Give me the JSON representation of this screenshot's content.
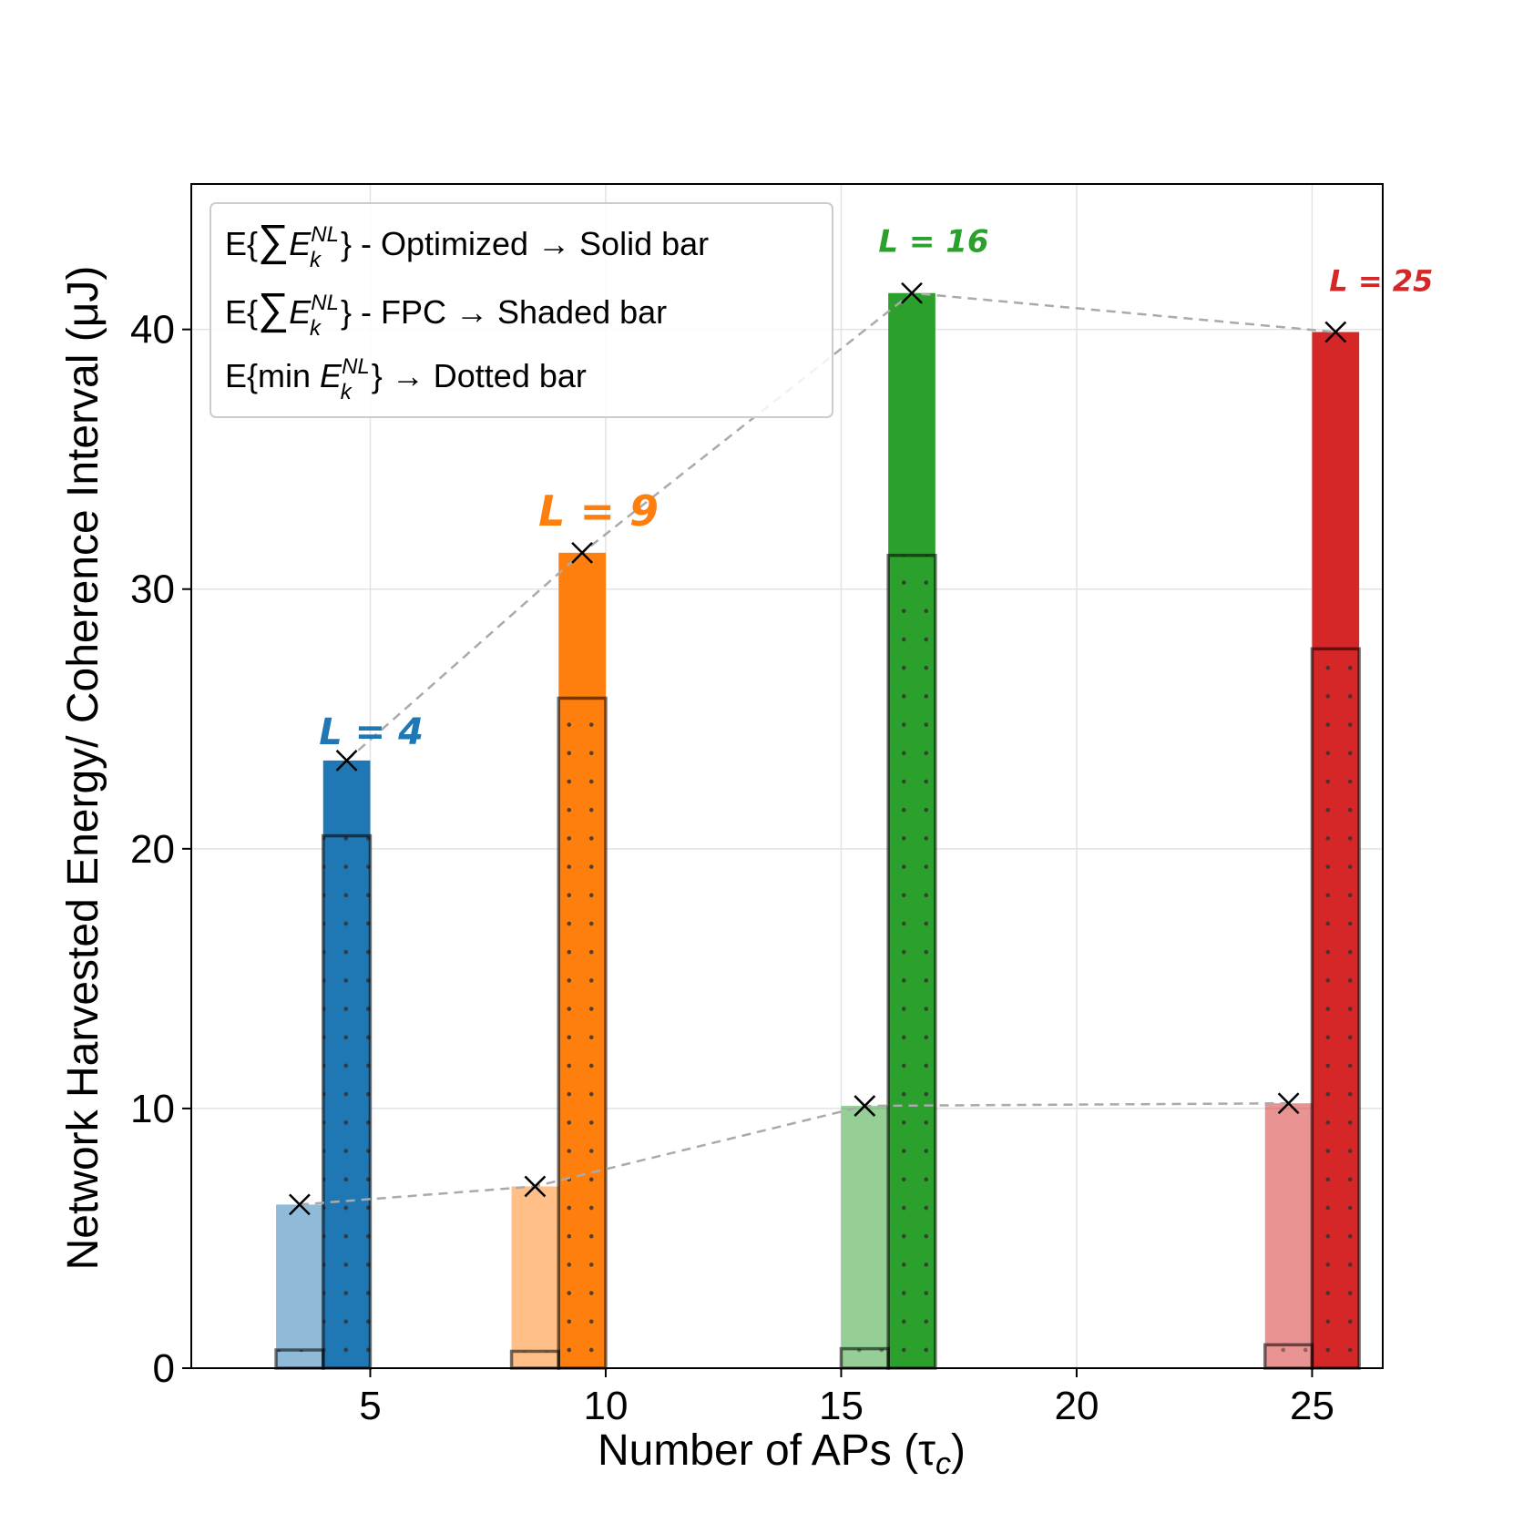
{
  "chart_data": {
    "type": "bar",
    "xlabel": "Number of APs (τ",
    "xlabel_sub": "c",
    "xlabel_close": ")",
    "ylabel": "Network Harvested Energy/ Coherence Interval (μJ)",
    "xlim": [
      1.2,
      26.5
    ],
    "ylim": [
      0,
      45.6
    ],
    "xticks": [
      5,
      10,
      15,
      20,
      25
    ],
    "yticks": [
      0,
      10,
      20,
      30,
      40
    ],
    "grid": true,
    "groups": [
      {
        "L": 4,
        "label": "L = 4",
        "color": "#1f77b4",
        "x_left": 3.5,
        "x_right": 4.5,
        "fpc": 6.3,
        "optimized": 23.4,
        "fpc_min": 0.7,
        "opt_min": 20.5
      },
      {
        "L": 9,
        "label": "L = 9",
        "color": "#ff7f0e",
        "x_left": 8.5,
        "x_right": 9.5,
        "fpc": 7.0,
        "optimized": 31.4,
        "fpc_min": 0.65,
        "opt_min": 25.8
      },
      {
        "L": 16,
        "label": "L = 16",
        "color": "#2ca02c",
        "x_left": 15.5,
        "x_right": 16.5,
        "fpc": 10.1,
        "optimized": 41.4,
        "fpc_min": 0.75,
        "opt_min": 31.3
      },
      {
        "L": 25,
        "label": "L = 25",
        "color": "#d62728",
        "x_left": 24.5,
        "x_right": 25.5,
        "fpc": 10.2,
        "optimized": 39.9,
        "fpc_min": 0.9,
        "opt_min": 27.7
      }
    ],
    "bar_width": 1.0,
    "legend": {
      "position": "top-left",
      "entries": [
        {
          "prefix": "E{",
          "sum": "∑",
          "E": "E",
          "sup": "NL",
          "sub": "k",
          "suffix": "} - Optimized → Solid bar"
        },
        {
          "prefix": "E{",
          "sum": "∑",
          "E": "E",
          "sup": "NL",
          "sub": "k",
          "suffix": "} - FPC → Shaded bar"
        },
        {
          "prefix": "E{min ",
          "sum": "",
          "E": "E",
          "sup": "NL",
          "sub": "k",
          "suffix": "} → Dotted bar"
        }
      ]
    }
  }
}
